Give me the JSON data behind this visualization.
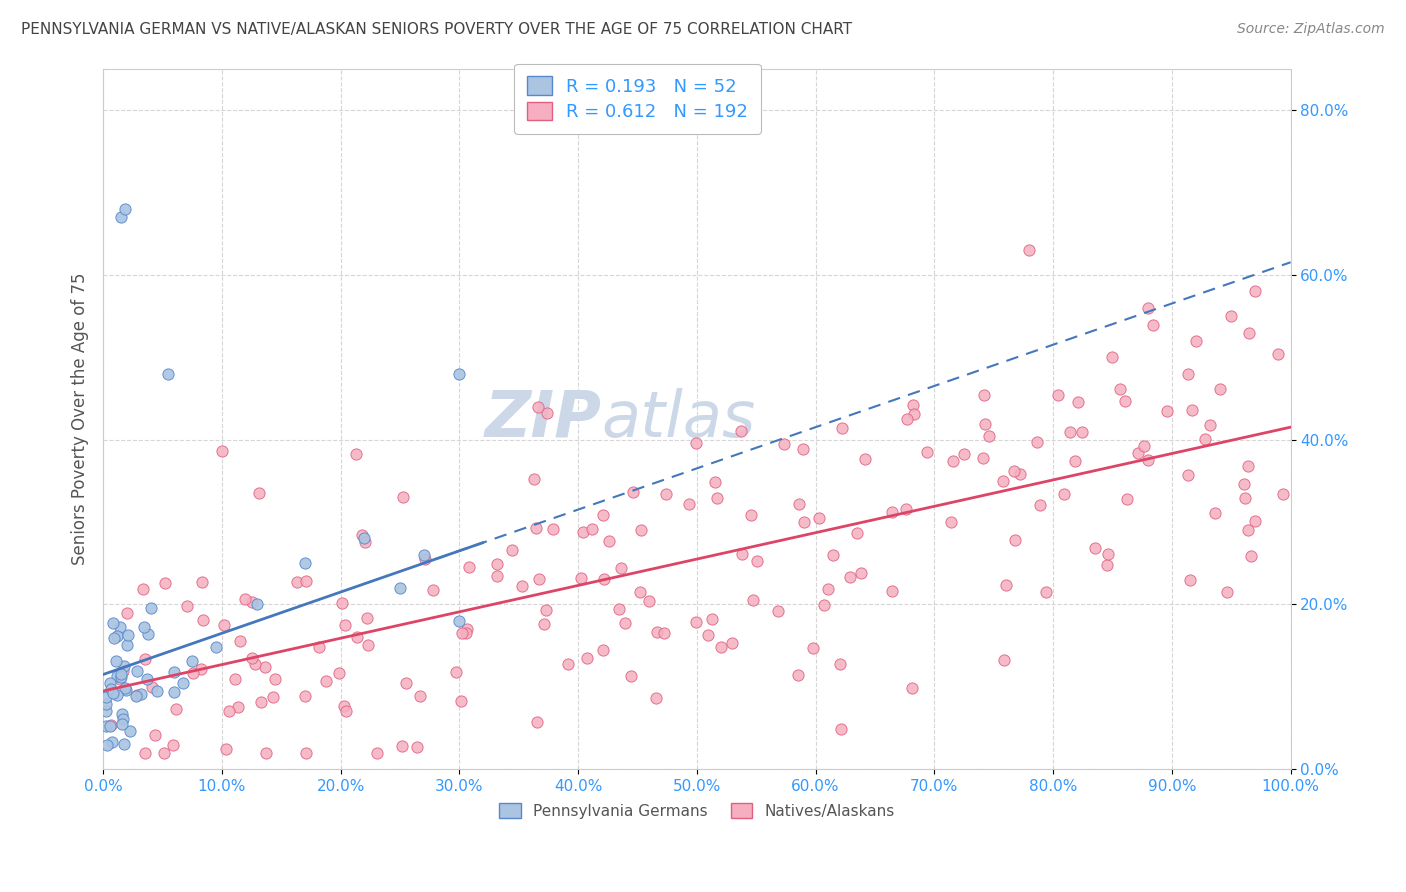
{
  "title": "PENNSYLVANIA GERMAN VS NATIVE/ALASKAN SENIORS POVERTY OVER THE AGE OF 75 CORRELATION CHART",
  "source": "Source: ZipAtlas.com",
  "ylabel": "Seniors Poverty Over the Age of 75",
  "blue_R": 0.193,
  "blue_N": 52,
  "pink_R": 0.612,
  "pink_N": 192,
  "blue_color": "#aac4e2",
  "pink_color": "#f5afc0",
  "blue_edge_color": "#5588cc",
  "pink_edge_color": "#e06080",
  "blue_line_color": "#4477bb",
  "pink_line_color": "#dd4466",
  "title_color": "#444444",
  "source_color": "#888888",
  "legend_text_color": "#3399ff",
  "tick_color": "#3399ff",
  "ylabel_color": "#555555",
  "watermark_color": "#ccd8e8",
  "xlim": [
    0.0,
    1.0
  ],
  "ylim": [
    0.0,
    0.85
  ],
  "yticks": [
    0.0,
    0.2,
    0.4,
    0.6,
    0.8
  ],
  "xticks": [
    0.0,
    0.1,
    0.2,
    0.3,
    0.4,
    0.5,
    0.6,
    0.7,
    0.8,
    0.9,
    1.0
  ],
  "blue_intercept": 0.115,
  "blue_slope": 0.5,
  "pink_intercept": 0.095,
  "pink_slope": 0.32,
  "blue_line_xmax": 1.0,
  "pink_line_xmax": 1.0
}
